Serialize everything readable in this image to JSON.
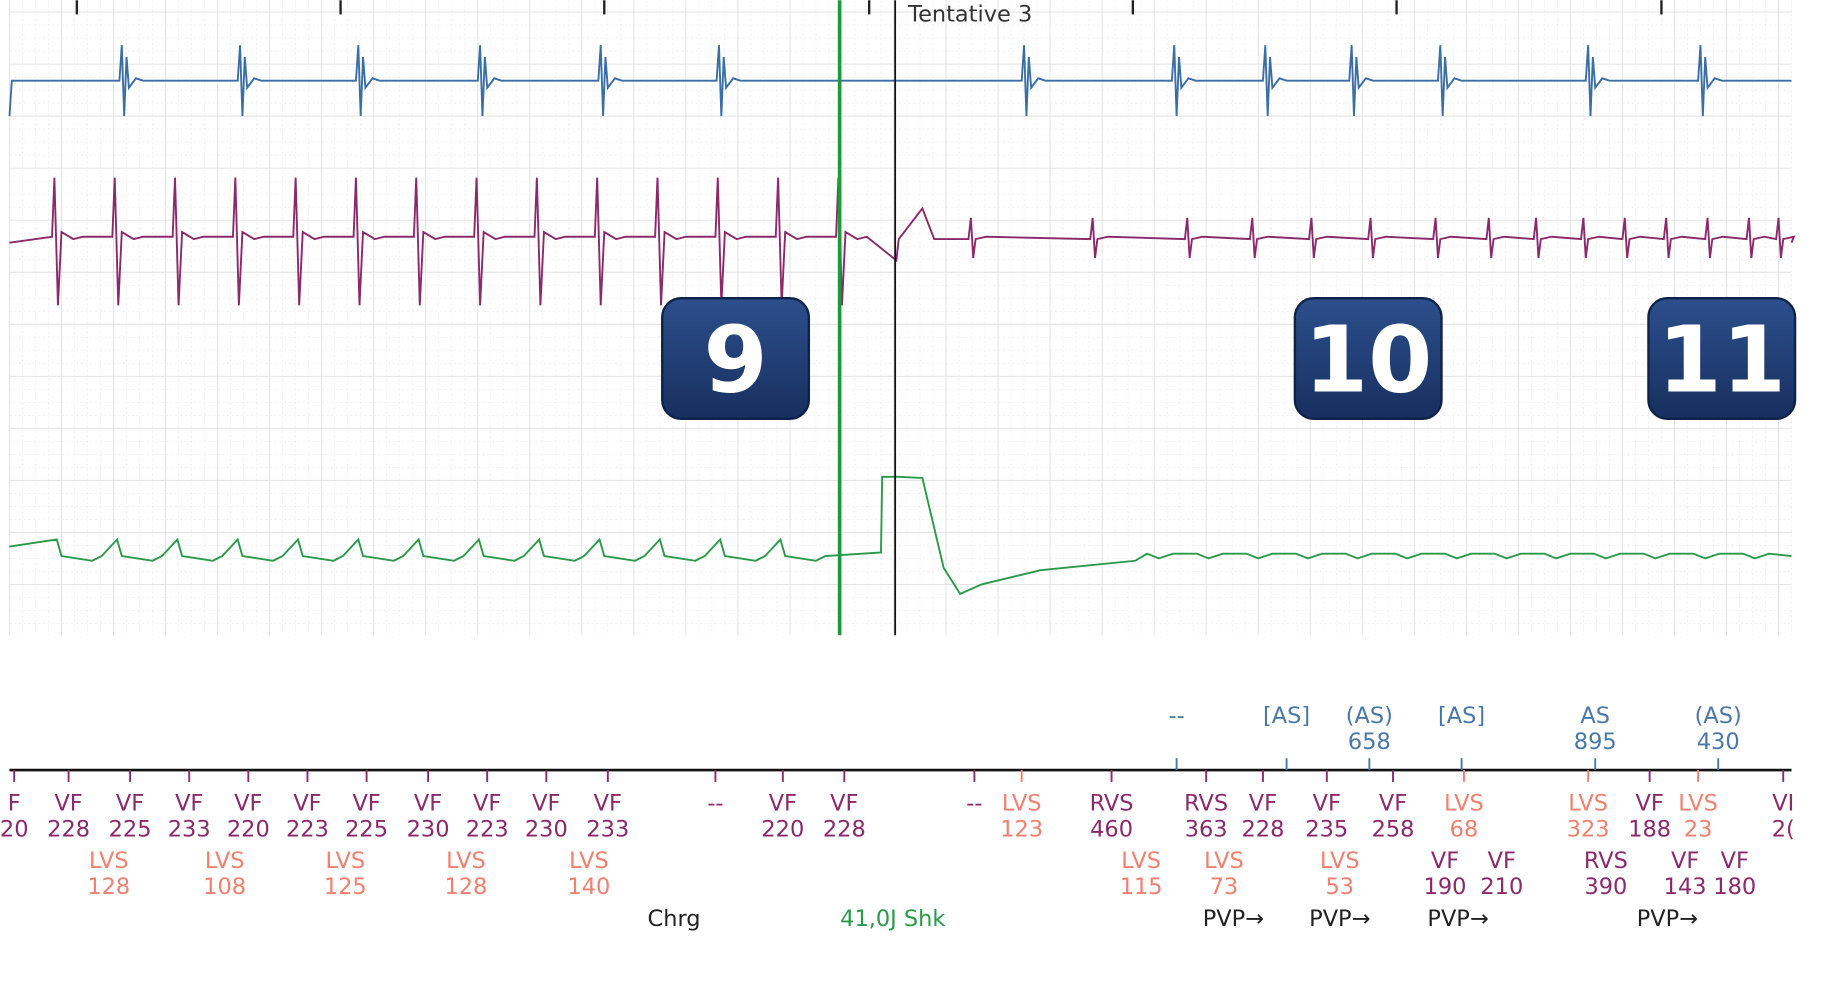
{
  "header": {
    "label": "Tentative 3"
  },
  "badges": [
    9,
    10,
    11
  ],
  "atrial_markers": [
    {
      "label": "--",
      "color": "#4a78a8"
    },
    {
      "label": "[AS]",
      "color": "#4a78a8"
    },
    {
      "label": "(AS)",
      "value": 658,
      "color": "#4a78a8"
    },
    {
      "label": "[AS]",
      "color": "#4a78a8"
    },
    {
      "label": "AS",
      "value": 895,
      "color": "#4a78a8"
    },
    {
      "label": "(AS)",
      "value": 430,
      "color": "#4a78a8"
    }
  ],
  "ventricular_markers": [
    {
      "label": "F",
      "value": 20,
      "color": "#8b2a6b"
    },
    {
      "label": "VF",
      "value": 228,
      "color": "#8b2a6b"
    },
    {
      "label": "VF",
      "value": 225,
      "color": "#8b2a6b"
    },
    {
      "label": "VF",
      "value": 233,
      "color": "#8b2a6b"
    },
    {
      "label": "VF",
      "value": 220,
      "color": "#8b2a6b"
    },
    {
      "label": "VF",
      "value": 223,
      "color": "#8b2a6b"
    },
    {
      "label": "VF",
      "value": 225,
      "color": "#8b2a6b"
    },
    {
      "label": "VF",
      "value": 230,
      "color": "#8b2a6b"
    },
    {
      "label": "VF",
      "value": 223,
      "color": "#8b2a6b"
    },
    {
      "label": "VF",
      "value": 230,
      "color": "#8b2a6b"
    },
    {
      "label": "VF",
      "value": 233,
      "color": "#8b2a6b"
    },
    {
      "label": "--",
      "color": "#8b2a6b"
    },
    {
      "label": "VF",
      "value": 220,
      "color": "#8b2a6b"
    },
    {
      "label": "VF",
      "value": 228,
      "color": "#8b2a6b"
    },
    {
      "label": "--",
      "color": "#8b2a6b"
    },
    {
      "label": "LVS",
      "value": 123,
      "color": "#f08070"
    },
    {
      "label": "RVS",
      "value": 460,
      "color": "#8b2a6b"
    },
    {
      "label": "RVS",
      "value": 363,
      "color": "#8b2a6b"
    },
    {
      "label": "VF",
      "value": 228,
      "color": "#8b2a6b"
    },
    {
      "label": "VF",
      "value": 235,
      "color": "#8b2a6b"
    },
    {
      "label": "VF",
      "value": 258,
      "color": "#8b2a6b"
    },
    {
      "label": "LVS",
      "value": 68,
      "color": "#f08070"
    },
    {
      "label": "LVS",
      "value": 323,
      "color": "#f08070"
    },
    {
      "label": "VF",
      "value": 188,
      "color": "#8b2a6b"
    },
    {
      "label": "LVS",
      "value": 23,
      "color": "#f08070"
    },
    {
      "label": "VI",
      "value": "2(",
      "color": "#8b2a6b"
    }
  ],
  "lv_markers": [
    {
      "label": "LVS",
      "value": 128,
      "color": "#f08070"
    },
    {
      "label": "LVS",
      "value": 108,
      "color": "#f08070"
    },
    {
      "label": "LVS",
      "value": 125,
      "color": "#f08070"
    },
    {
      "label": "LVS",
      "value": 128,
      "color": "#f08070"
    },
    {
      "label": "LVS",
      "value": 140,
      "color": "#f08070"
    },
    {
      "label": "LVS",
      "value": 115,
      "color": "#f08070"
    },
    {
      "label": "LVS",
      "value": 73,
      "color": "#f08070"
    },
    {
      "label": "LVS",
      "value": 53,
      "color": "#f08070"
    },
    {
      "label": "VF",
      "value": 190,
      "color": "#8b2a6b"
    },
    {
      "label": "VF",
      "value": 210,
      "color": "#8b2a6b"
    },
    {
      "label": "RVS",
      "value": 390,
      "color": "#8b2a6b"
    },
    {
      "label": "VF",
      "value": 143,
      "color": "#8b2a6b"
    },
    {
      "label": "VF",
      "value": 180,
      "color": "#8b2a6b"
    }
  ],
  "events": [
    {
      "label": "Chrg",
      "color": "#222222"
    },
    {
      "label": "41,0J Shk",
      "color": "#2a9a4a"
    },
    {
      "label": "PVP→",
      "color": "#222222"
    },
    {
      "label": "PVP→",
      "color": "#222222"
    },
    {
      "label": "PVP→",
      "color": "#222222"
    },
    {
      "label": "PVP→",
      "color": "#222222"
    }
  ]
}
